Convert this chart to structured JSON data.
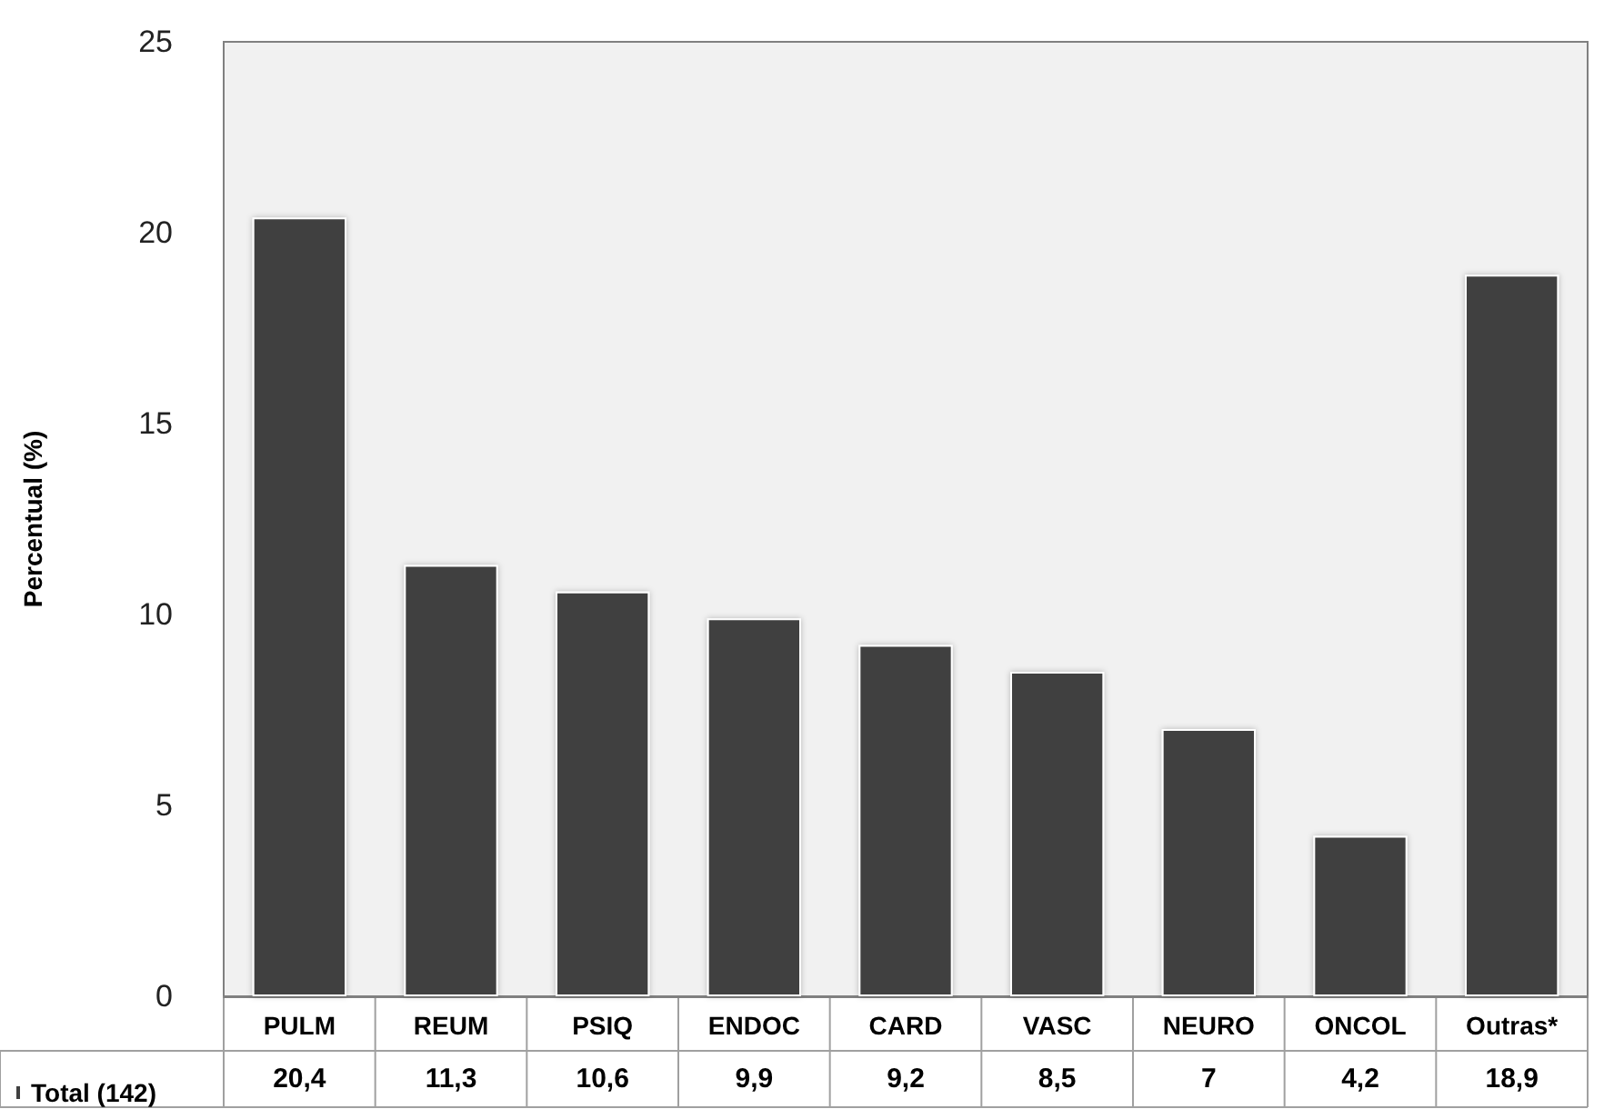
{
  "chart_data": {
    "type": "bar",
    "ylabel": "Percentual (%)",
    "categories": [
      "PULM",
      "REUM",
      "PSIQ",
      "ENDOC",
      "CARD",
      "VASC",
      "NEURO",
      "ONCOL",
      "Outras*"
    ],
    "series": [
      {
        "name": "Total (142)",
        "color": "#404040",
        "values": [
          20.4,
          11.3,
          10.6,
          9.9,
          9.2,
          8.5,
          7,
          4.2,
          18.9
        ],
        "value_labels": [
          "20,4",
          "11,3",
          "10,6",
          "9,9",
          "9,2",
          "8,5",
          "7",
          "4,2",
          "18,9"
        ]
      }
    ],
    "ylim": [
      0,
      25
    ],
    "yticks": [
      0,
      5,
      10,
      15,
      20,
      25
    ],
    "grid": false,
    "legend": "bottom left"
  }
}
